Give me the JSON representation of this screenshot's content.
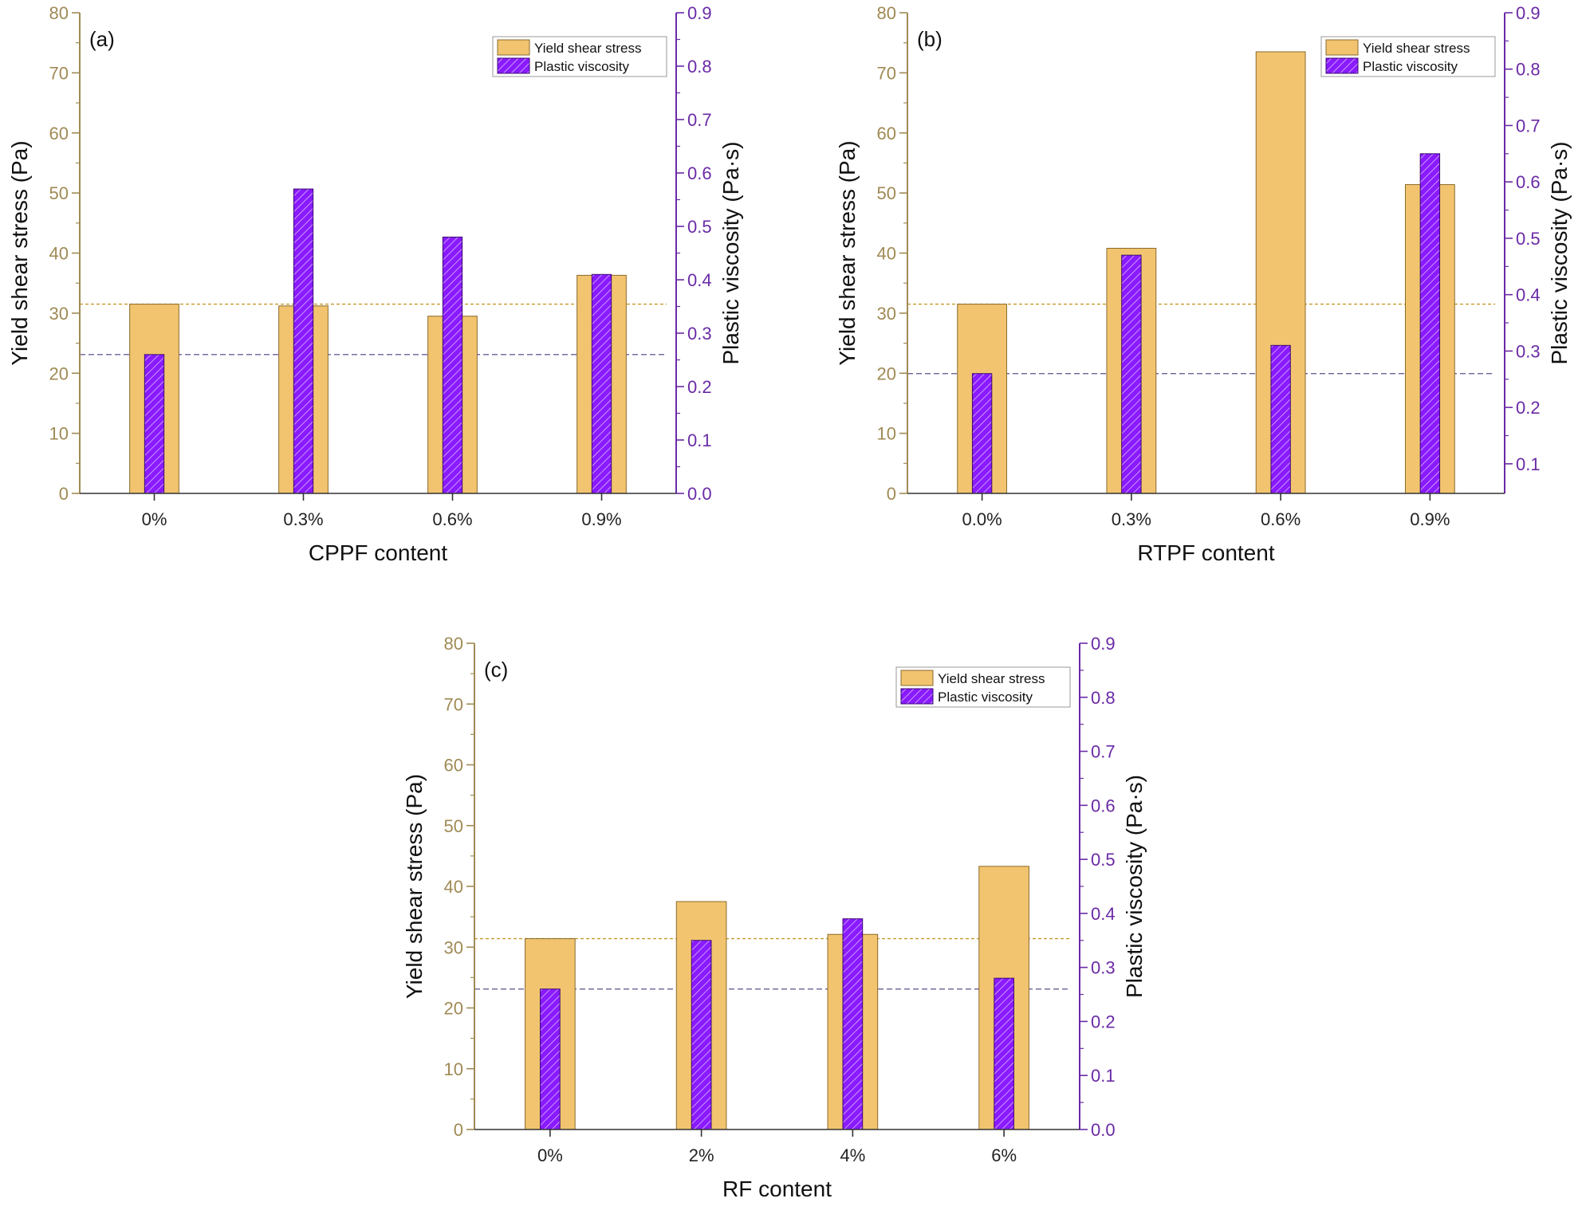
{
  "figure": {
    "colors": {
      "yield": "#f2c46f",
      "yield_stroke": "#8a6a2c",
      "yield_axis": "#a08a55",
      "viscosity": "#8a1aff",
      "viscosity_axis": "#6a2aa6",
      "ref_yield_line": "#c79a2a",
      "ref_visc_line": "#6f5f96"
    }
  },
  "chart_data": [
    {
      "type": "bar",
      "panel_label": "(a)",
      "xlabel": "CPPF content",
      "ylabel": "Yield shear stress (Pa)",
      "y2label": "Plastic viscosity (Pa·s)",
      "categories": [
        "0%",
        "0.3%",
        "0.6%",
        "0.9%"
      ],
      "ylim": [
        0,
        80
      ],
      "yticks": [
        "0",
        "10",
        "20",
        "30",
        "40",
        "50",
        "60",
        "70",
        "80"
      ],
      "y2lim": [
        0,
        0.9
      ],
      "y2ticks": [
        "0.0",
        "0.1",
        "0.2",
        "0.3",
        "0.4",
        "0.5",
        "0.6",
        "0.7",
        "0.8",
        "0.9"
      ],
      "series": [
        {
          "name": "Yield shear stress",
          "axis": "left",
          "values": [
            31.5,
            31.2,
            29.5,
            36.3
          ]
        },
        {
          "name": "Plastic viscosity",
          "axis": "right",
          "values": [
            0.26,
            0.57,
            0.48,
            0.41
          ]
        }
      ],
      "reference_lines": {
        "yield": 31.5,
        "viscosity": 0.26
      },
      "legend": [
        "Yield shear stress",
        "Plastic viscosity"
      ],
      "legend_position": "top-right"
    },
    {
      "type": "bar",
      "panel_label": "(b)",
      "xlabel": "RTPF content",
      "ylabel": "Yield shear stress (Pa)",
      "y2label": "Plastic viscosity (Pa·s)",
      "categories": [
        "0.0%",
        "0.3%",
        "0.6%",
        "0.9%"
      ],
      "ylim": [
        0,
        80
      ],
      "yticks": [
        "0",
        "10",
        "20",
        "30",
        "40",
        "50",
        "60",
        "70",
        "80"
      ],
      "y2lim": [
        0.0475,
        0.9
      ],
      "y2ticks": [
        "0.1",
        "0.2",
        "0.3",
        "0.4",
        "0.5",
        "0.6",
        "0.7",
        "0.8",
        "0.9"
      ],
      "series": [
        {
          "name": "Yield shear stress",
          "axis": "left",
          "values": [
            31.5,
            40.8,
            73.5,
            51.4
          ]
        },
        {
          "name": "Plastic viscosity",
          "axis": "right",
          "values": [
            0.26,
            0.47,
            0.31,
            0.65
          ]
        }
      ],
      "reference_lines": {
        "yield": 31.5,
        "viscosity": 0.26
      },
      "legend": [
        "Yield shear stress",
        "Plastic viscosity"
      ],
      "legend_position": "top-right"
    },
    {
      "type": "bar",
      "panel_label": "(c)",
      "xlabel": "RF content",
      "ylabel": "Yield shear stress (Pa)",
      "y2label": "Plastic viscosity (Pa·s)",
      "categories": [
        "0%",
        "2%",
        "4%",
        "6%"
      ],
      "ylim": [
        0,
        80
      ],
      "yticks": [
        "0",
        "10",
        "20",
        "30",
        "40",
        "50",
        "60",
        "70",
        "80"
      ],
      "y2lim": [
        0,
        0.9
      ],
      "y2ticks": [
        "0.0",
        "0.1",
        "0.2",
        "0.3",
        "0.4",
        "0.5",
        "0.6",
        "0.7",
        "0.8",
        "0.9"
      ],
      "series": [
        {
          "name": "Yield shear stress",
          "axis": "left",
          "values": [
            31.4,
            37.5,
            32.1,
            43.3
          ]
        },
        {
          "name": "Plastic viscosity",
          "axis": "right",
          "values": [
            0.26,
            0.35,
            0.39,
            0.28
          ]
        }
      ],
      "reference_lines": {
        "yield": 31.4,
        "viscosity": 0.26
      },
      "legend": [
        "Yield shear stress",
        "Plastic viscosity"
      ],
      "legend_position": "top-right"
    }
  ]
}
